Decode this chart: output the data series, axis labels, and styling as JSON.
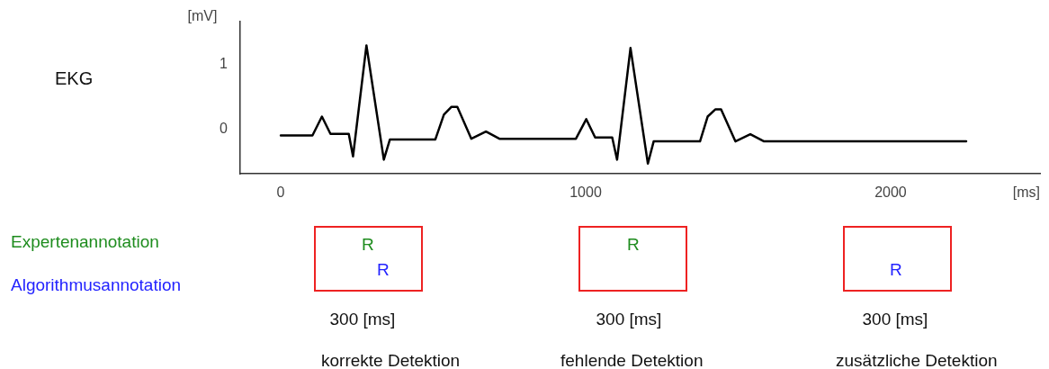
{
  "chart_data": {
    "type": "line",
    "xlabel": "[ms]",
    "ylabel": "[mV]",
    "x": [
      0,
      104,
      135,
      163,
      223,
      237,
      281,
      338,
      358,
      507,
      535,
      560,
      579,
      625,
      673,
      717,
      968,
      1002,
      1031,
      1087,
      1103,
      1147,
      1204,
      1223,
      1375,
      1400,
      1425,
      1444,
      1491,
      1540,
      1585,
      2248
    ],
    "series": [
      {
        "color": "#000000",
        "values": [
          -0.09,
          -0.09,
          0.2,
          -0.065,
          -0.065,
          -0.41,
          1.29,
          -0.46,
          -0.15,
          -0.15,
          0.23,
          0.35,
          0.35,
          -0.14,
          -0.03,
          -0.14,
          -0.14,
          0.16,
          -0.12,
          -0.12,
          -0.46,
          1.25,
          -0.52,
          -0.18,
          -0.18,
          0.2,
          0.31,
          0.31,
          -0.18,
          -0.07,
          -0.18,
          -0.18
        ]
      }
    ],
    "xlim": [
      -133,
      2490
    ],
    "ylim": [
      -0.675,
      1.66
    ],
    "xticks": [
      0,
      1000,
      2000
    ],
    "yticks": [
      0,
      1
    ],
    "grid": false,
    "legend": false,
    "marker": "none",
    "line_style": "solid",
    "annotations": [
      "EKG",
      "Expertenannotation",
      "Algorithmusannotation",
      "R",
      "R",
      "R",
      "R",
      "300 [ms]",
      "300 [ms]",
      "300 [ms]",
      "korrekte Detektion",
      "fehlende Detektion",
      "zusätzliche Detektion"
    ]
  }
}
